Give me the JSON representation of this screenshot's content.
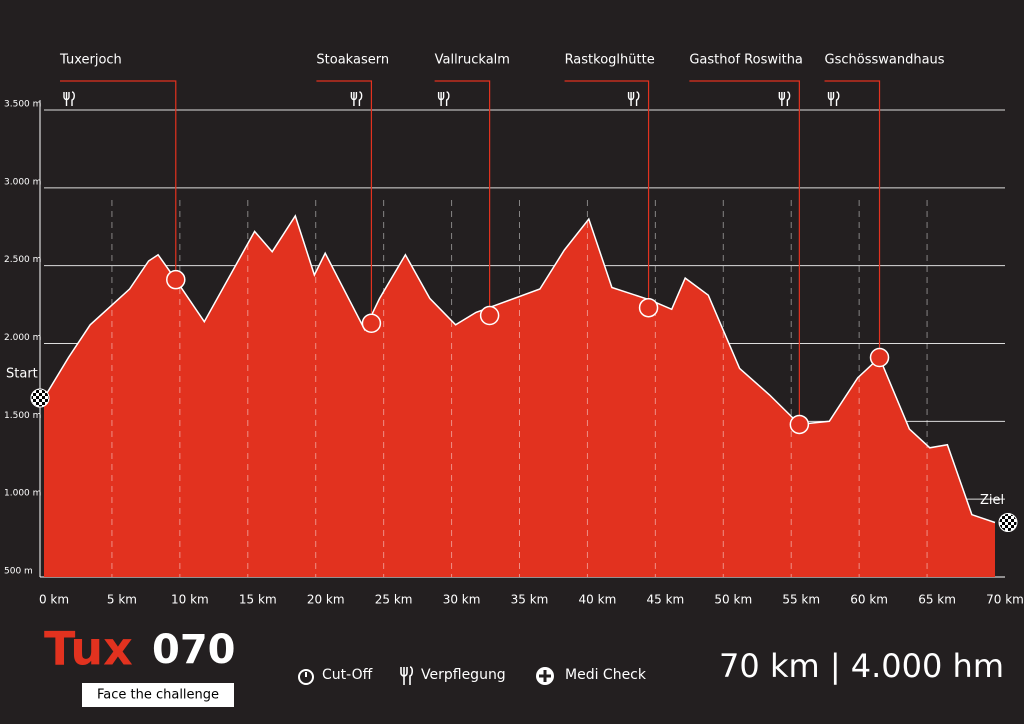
{
  "chart_data": {
    "type": "area",
    "x": [
      0,
      1.8,
      3.4,
      6.3,
      7.7,
      8.4,
      9.7,
      11.8,
      15.5,
      16.8,
      18.5,
      19.9,
      20.7,
      23.6,
      24.7,
      26.6,
      28.4,
      30.3,
      31.8,
      36.5,
      38.3,
      40.1,
      41.8,
      44.6,
      46.2,
      47.2,
      48.9,
      51.2,
      53.4,
      55.6,
      57.8,
      59.9,
      61.5,
      63.7,
      65.2,
      66.5,
      68.3,
      70
    ],
    "values": [
      1650,
      1910,
      2120,
      2350,
      2530,
      2570,
      2410,
      2140,
      2720,
      2590,
      2820,
      2440,
      2580,
      2090,
      2290,
      2570,
      2290,
      2120,
      2200,
      2350,
      2600,
      2800,
      2360,
      2280,
      2220,
      2420,
      2310,
      1840,
      1670,
      1480,
      1500,
      1780,
      1910,
      1450,
      1330,
      1350,
      900,
      850
    ],
    "color": "#e2321f",
    "xlim": [
      0,
      70
    ],
    "ylim": [
      500,
      3500
    ],
    "xticks": [
      {
        "value": 0,
        "label": "0 km"
      },
      {
        "value": 5,
        "label": "5 km"
      },
      {
        "value": 10,
        "label": "10 km"
      },
      {
        "value": 15,
        "label": "15 km"
      },
      {
        "value": 20,
        "label": "20 km"
      },
      {
        "value": 25,
        "label": "25 km"
      },
      {
        "value": 30,
        "label": "30 km"
      },
      {
        "value": 35,
        "label": "35 km"
      },
      {
        "value": 40,
        "label": "40 km"
      },
      {
        "value": 45,
        "label": "45 km"
      },
      {
        "value": 50,
        "label": "50 km"
      },
      {
        "value": 55,
        "label": "55 km"
      },
      {
        "value": 60,
        "label": "60 km"
      },
      {
        "value": 65,
        "label": "65 km"
      },
      {
        "value": 70,
        "label": "70 km"
      }
    ],
    "yticks": [
      {
        "value": 500,
        "label": "500 m"
      },
      {
        "value": 1000,
        "label": "1.000 m"
      },
      {
        "value": 1500,
        "label": "1.500 m"
      },
      {
        "value": 2000,
        "label": "2.000 m"
      },
      {
        "value": 2500,
        "label": "2.500 m"
      },
      {
        "value": 3000,
        "label": "3.000 m"
      },
      {
        "value": 3500,
        "label": "3.500 m"
      }
    ],
    "grid": true,
    "annotations": [
      {
        "label": "Tuxerjoch",
        "x": 9.7,
        "y": 2410
      },
      {
        "label": "Stoakasern",
        "x": 24.1,
        "y": 2130
      },
      {
        "label": "Vallruckalm",
        "x": 32.8,
        "y": 2180
      },
      {
        "label": "Rastkoglhütte",
        "x": 44.5,
        "y": 2230
      },
      {
        "label": "Gasthof Roswitha",
        "x": 55.6,
        "y": 1480
      },
      {
        "label": "Gschösswandhaus",
        "x": 61.5,
        "y": 1910
      }
    ],
    "start_label": "Start",
    "finish_label": "Ziel"
  },
  "footer": {
    "brand": "Tux",
    "brand_number": "070",
    "tagline": "Face the challenge",
    "legend": [
      "Cut-Off",
      "Verpflegung",
      "Medi Check"
    ],
    "summary": "70 km | 4.000 hm"
  }
}
